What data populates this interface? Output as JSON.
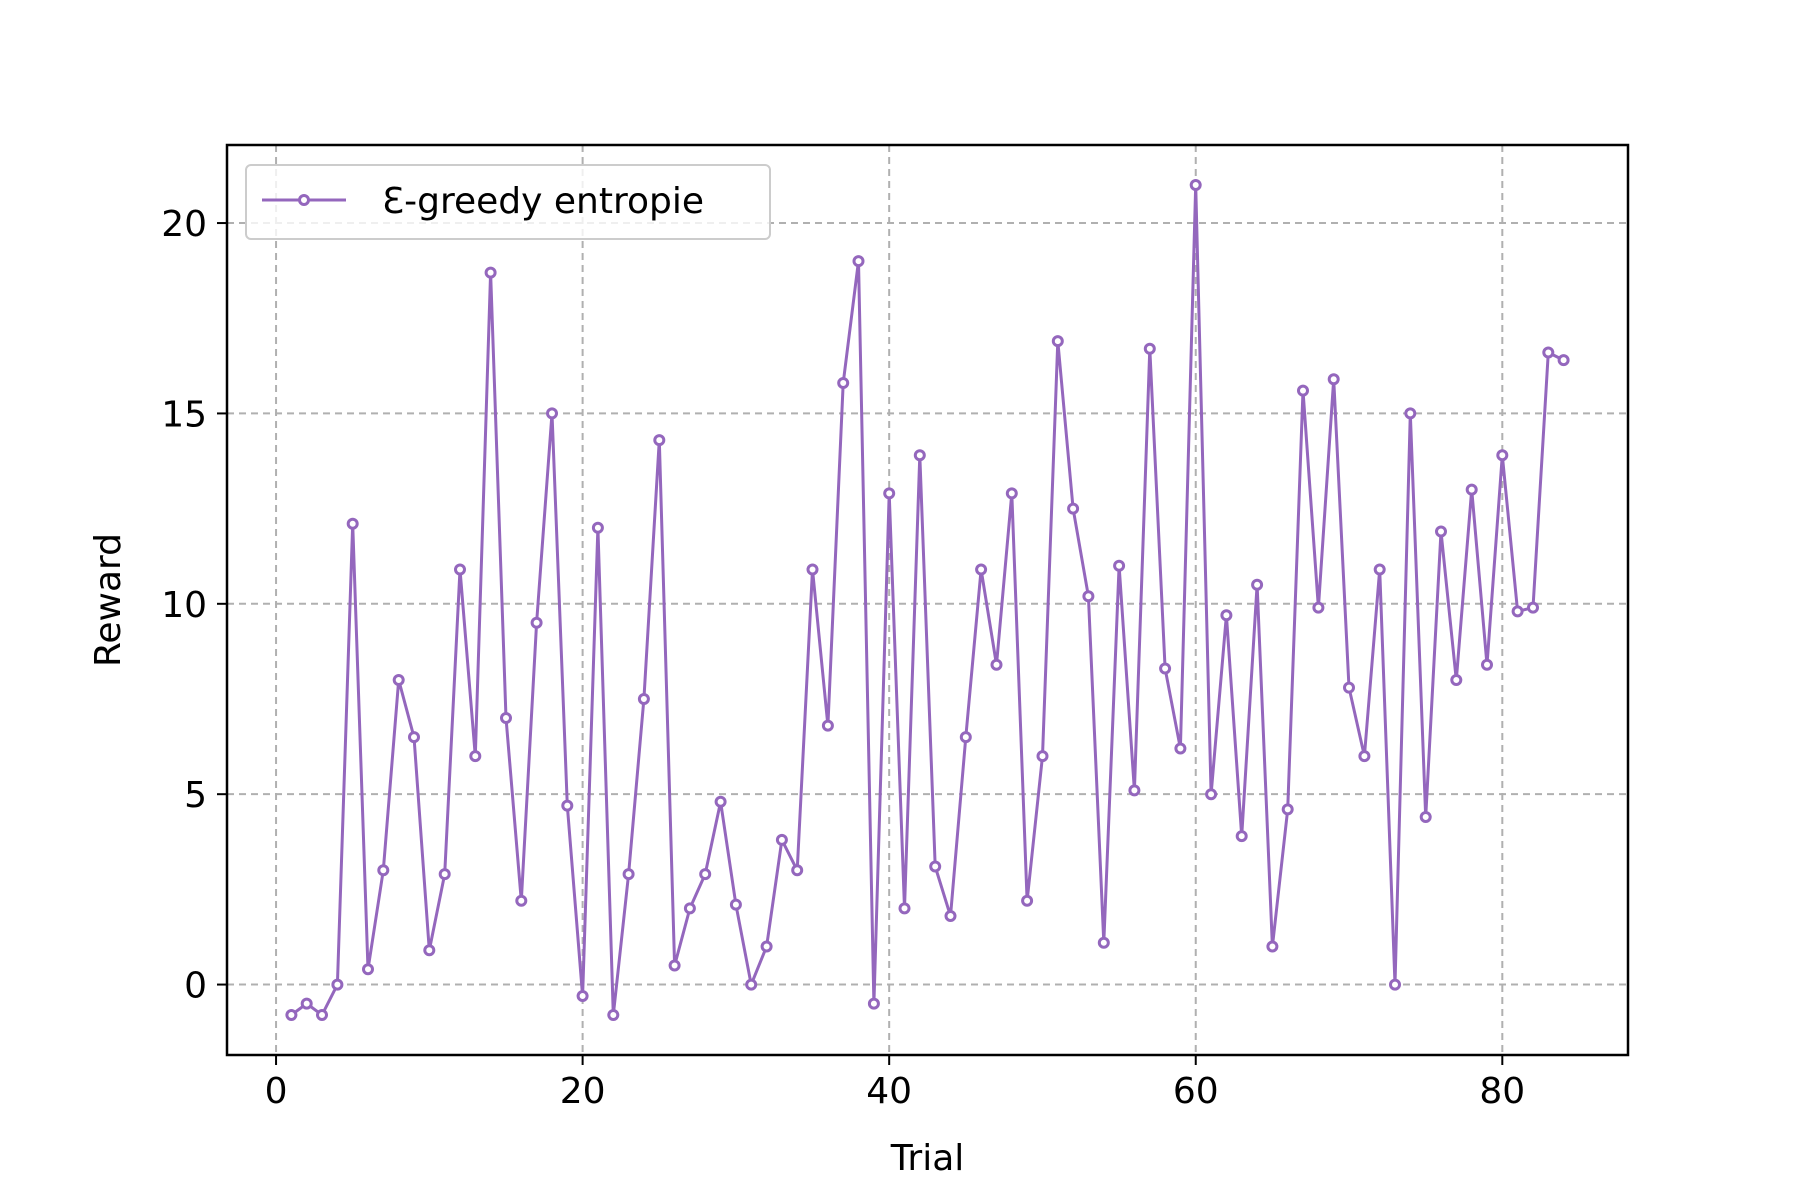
{
  "chart_data": {
    "type": "line",
    "title": "",
    "xlabel": "Trial",
    "ylabel": "Reward",
    "xlim": [
      -3.2,
      88.2
    ],
    "ylim": [
      -1.85,
      22.05
    ],
    "xticks": [
      0,
      20,
      40,
      60,
      80
    ],
    "yticks": [
      0,
      5,
      10,
      15,
      20
    ],
    "grid": true,
    "legend_position": "top-left",
    "series": [
      {
        "name": "Ɛ-greedy entropie",
        "color": "#9467bd",
        "marker": "circle",
        "x": [
          1,
          2,
          3,
          4,
          5,
          6,
          7,
          8,
          9,
          10,
          11,
          12,
          13,
          14,
          15,
          16,
          17,
          18,
          19,
          20,
          21,
          22,
          23,
          24,
          25,
          26,
          27,
          28,
          29,
          30,
          31,
          32,
          33,
          34,
          35,
          36,
          37,
          38,
          39,
          40,
          41,
          42,
          43,
          44,
          45,
          46,
          47,
          48,
          49,
          50,
          51,
          52,
          53,
          54,
          55,
          56,
          57,
          58,
          59,
          60,
          61,
          62,
          63,
          64,
          65,
          66,
          67,
          68,
          69,
          70,
          71,
          72,
          73,
          74,
          75,
          76,
          77,
          78,
          79,
          80,
          81,
          82,
          83,
          84
        ],
        "y": [
          -0.8,
          -0.5,
          -0.8,
          0.0,
          12.1,
          0.4,
          3.0,
          8.0,
          6.5,
          0.9,
          2.9,
          10.9,
          6.0,
          18.7,
          7.0,
          2.2,
          9.5,
          15.0,
          4.7,
          -0.3,
          12.0,
          -0.8,
          2.9,
          7.5,
          14.3,
          0.5,
          2.0,
          2.9,
          4.8,
          2.1,
          0.0,
          1.0,
          3.8,
          3.0,
          10.9,
          6.8,
          15.8,
          19.0,
          -0.5,
          12.9,
          2.0,
          13.9,
          3.1,
          1.8,
          6.5,
          10.9,
          8.4,
          12.9,
          2.2,
          6.0,
          16.9,
          12.5,
          10.2,
          1.1,
          11.0,
          5.1,
          16.7,
          8.3,
          6.2,
          21.0,
          5.0,
          9.7,
          3.9,
          10.5,
          1.0,
          4.6,
          15.6,
          9.9,
          15.9,
          7.8,
          6.0,
          10.9,
          0.0,
          15.0,
          4.4,
          11.9,
          8.0,
          13.0,
          8.4,
          13.9,
          9.8,
          9.9,
          16.6,
          16.4
        ]
      }
    ]
  }
}
